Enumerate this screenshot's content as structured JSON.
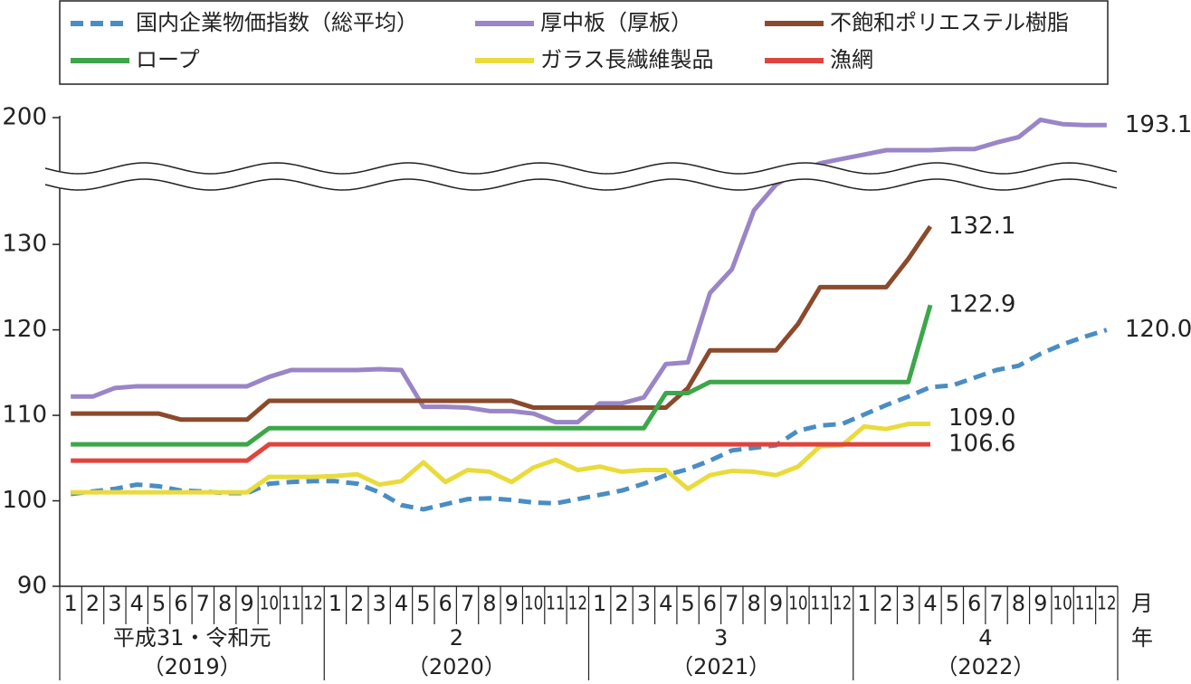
{
  "chart_data": {
    "type": "line",
    "categories": [
      "1",
      "2",
      "3",
      "4",
      "5",
      "6",
      "7",
      "8",
      "9",
      "10",
      "11",
      "12",
      "1",
      "2",
      "3",
      "4",
      "5",
      "6",
      "7",
      "8",
      "9",
      "10",
      "11",
      "12",
      "1",
      "2",
      "3",
      "4",
      "5",
      "6",
      "7",
      "8",
      "9",
      "10",
      "11",
      "12",
      "1",
      "2",
      "3",
      "4",
      "5",
      "6",
      "7",
      "8",
      "9",
      "10",
      "11",
      "12"
    ],
    "year_groups": [
      {
        "label": "平成31・令和元",
        "year": "（2019）"
      },
      {
        "label": "2",
        "year": "（2020）"
      },
      {
        "label": "3",
        "year": "（2021）"
      },
      {
        "label": "4",
        "year": "（2022）"
      }
    ],
    "month_unit": "月",
    "year_unit": "年",
    "ylim": [
      90,
      200
    ],
    "axis_break": [
      137,
      150
    ],
    "yticks": [
      90,
      100,
      110,
      120,
      130,
      200
    ],
    "series": [
      {
        "name": "国内企業物価指数（総平均）",
        "color": "#4a8dc4",
        "dashed": true,
        "values": [
          100.8,
          101.1,
          101.4,
          101.9,
          101.7,
          101.2,
          101.1,
          100.9,
          100.9,
          102.0,
          102.2,
          102.3,
          102.3,
          102.0,
          101.0,
          99.5,
          99.0,
          99.6,
          100.2,
          100.3,
          100.1,
          99.8,
          99.7,
          100.2,
          100.7,
          101.2,
          102.0,
          103.0,
          103.7,
          104.7,
          105.9,
          106.2,
          106.5,
          108.2,
          108.8,
          109.0,
          110.1,
          111.2,
          112.2,
          113.3,
          113.5,
          114.4,
          115.3,
          115.8,
          117.2,
          118.3,
          119.2,
          120.0
        ],
        "value_labels": [
          null,
          null,
          null,
          null,
          null,
          null,
          null,
          null,
          null,
          null,
          null,
          null,
          null,
          null,
          null,
          null,
          null,
          null,
          null,
          null,
          null,
          null,
          null,
          null,
          null,
          null,
          null,
          null,
          null,
          null,
          null,
          null,
          null,
          null,
          null,
          null,
          null,
          null,
          null,
          null,
          null,
          null,
          null,
          null,
          null,
          null,
          null,
          "120.0"
        ]
      },
      {
        "name": "厚中板（厚板）",
        "color": "#9a85c6",
        "dashed": false,
        "values": [
          112.2,
          112.2,
          113.2,
          113.4,
          113.4,
          113.4,
          113.4,
          113.4,
          113.4,
          114.5,
          115.3,
          115.3,
          115.3,
          115.3,
          115.4,
          115.3,
          111.0,
          111.0,
          110.9,
          110.5,
          110.5,
          110.2,
          109.2,
          109.2,
          111.4,
          111.4,
          112.1,
          116.0,
          116.2,
          124.3,
          127.1,
          134.0,
          137.0,
          150.0,
          158.0,
          162.0,
          166.0,
          170.0,
          170.0,
          170.0,
          171.0,
          171.0,
          177.0,
          182.0,
          198.0,
          194.0,
          193.1,
          193.1
        ],
        "value_labels": [
          null,
          null,
          null,
          null,
          null,
          null,
          null,
          null,
          null,
          null,
          null,
          null,
          null,
          null,
          null,
          null,
          null,
          null,
          null,
          null,
          null,
          null,
          null,
          null,
          null,
          null,
          null,
          null,
          null,
          null,
          null,
          null,
          null,
          null,
          null,
          null,
          null,
          null,
          null,
          null,
          null,
          null,
          null,
          null,
          null,
          null,
          null,
          "193.1"
        ]
      },
      {
        "name": "不飽和ポリエステル樹脂",
        "color": "#8b4a2b",
        "dashed": false,
        "values": [
          110.2,
          110.2,
          110.2,
          110.2,
          110.2,
          109.5,
          109.5,
          109.5,
          109.5,
          111.7,
          111.7,
          111.7,
          111.7,
          111.7,
          111.7,
          111.7,
          111.7,
          111.7,
          111.7,
          111.7,
          111.7,
          110.9,
          110.9,
          110.9,
          110.9,
          110.9,
          110.9,
          110.9,
          113.2,
          117.6,
          117.6,
          117.6,
          117.6,
          120.7,
          125.0,
          125.0,
          125.0,
          125.0,
          128.3,
          132.1,
          null,
          null,
          null,
          null,
          null,
          null,
          null,
          null
        ],
        "value_labels": [
          null,
          null,
          null,
          null,
          null,
          null,
          null,
          null,
          null,
          null,
          null,
          null,
          null,
          null,
          null,
          null,
          null,
          null,
          null,
          null,
          null,
          null,
          null,
          null,
          null,
          null,
          null,
          null,
          null,
          null,
          null,
          null,
          null,
          null,
          null,
          null,
          null,
          null,
          null,
          "132.1",
          null,
          null,
          null,
          null,
          null,
          null,
          null,
          null
        ]
      },
      {
        "name": "ロープ",
        "color": "#3ea64a",
        "dashed": false,
        "values": [
          106.6,
          106.6,
          106.6,
          106.6,
          106.6,
          106.6,
          106.6,
          106.6,
          106.6,
          108.5,
          108.5,
          108.5,
          108.5,
          108.5,
          108.5,
          108.5,
          108.5,
          108.5,
          108.5,
          108.5,
          108.5,
          108.5,
          108.5,
          108.5,
          108.5,
          108.5,
          108.5,
          112.6,
          112.6,
          113.9,
          113.9,
          113.9,
          113.9,
          113.9,
          113.9,
          113.9,
          113.9,
          113.9,
          113.9,
          122.9,
          null,
          null,
          null,
          null,
          null,
          null,
          null,
          null
        ],
        "value_labels": [
          null,
          null,
          null,
          null,
          null,
          null,
          null,
          null,
          null,
          null,
          null,
          null,
          null,
          null,
          null,
          null,
          null,
          null,
          null,
          null,
          null,
          null,
          null,
          null,
          null,
          null,
          null,
          null,
          null,
          null,
          null,
          null,
          null,
          null,
          null,
          null,
          null,
          null,
          null,
          "122.9",
          null,
          null,
          null,
          null,
          null,
          null,
          null,
          null
        ]
      },
      {
        "name": "ガラス長繊維製品",
        "color": "#e9db3c",
        "dashed": false,
        "values": [
          101.0,
          101.0,
          101.0,
          101.0,
          101.0,
          101.0,
          101.0,
          101.0,
          101.0,
          102.8,
          102.8,
          102.8,
          102.9,
          103.1,
          101.9,
          102.3,
          104.5,
          102.2,
          103.6,
          103.4,
          102.2,
          103.9,
          104.8,
          103.6,
          104.0,
          103.4,
          103.6,
          103.6,
          101.4,
          103.0,
          103.5,
          103.4,
          103.0,
          104.0,
          106.4,
          106.5,
          108.7,
          108.4,
          109.0,
          109.0,
          null,
          null,
          null,
          null,
          null,
          null,
          null,
          null
        ],
        "value_labels": [
          null,
          null,
          null,
          null,
          null,
          null,
          null,
          null,
          null,
          null,
          null,
          null,
          null,
          null,
          null,
          null,
          null,
          null,
          null,
          null,
          null,
          null,
          null,
          null,
          null,
          null,
          null,
          null,
          null,
          null,
          null,
          null,
          null,
          null,
          null,
          null,
          null,
          null,
          null,
          "109.0",
          null,
          null,
          null,
          null,
          null,
          null,
          null,
          null
        ]
      },
      {
        "name": "漁網",
        "color": "#e0443e",
        "dashed": false,
        "values": [
          104.7,
          104.7,
          104.7,
          104.7,
          104.7,
          104.7,
          104.7,
          104.7,
          104.7,
          106.6,
          106.6,
          106.6,
          106.6,
          106.6,
          106.6,
          106.6,
          106.6,
          106.6,
          106.6,
          106.6,
          106.6,
          106.6,
          106.6,
          106.6,
          106.6,
          106.6,
          106.6,
          106.6,
          106.6,
          106.6,
          106.6,
          106.6,
          106.6,
          106.6,
          106.6,
          106.6,
          106.6,
          106.6,
          106.6,
          106.6,
          null,
          null,
          null,
          null,
          null,
          null,
          null,
          null
        ],
        "value_labels": [
          null,
          null,
          null,
          null,
          null,
          null,
          null,
          null,
          null,
          null,
          null,
          null,
          null,
          null,
          null,
          null,
          null,
          null,
          null,
          null,
          null,
          null,
          null,
          null,
          null,
          null,
          null,
          null,
          null,
          null,
          null,
          null,
          null,
          null,
          null,
          null,
          null,
          null,
          null,
          "106.6",
          null,
          null,
          null,
          null,
          null,
          null,
          null,
          null
        ]
      }
    ]
  }
}
